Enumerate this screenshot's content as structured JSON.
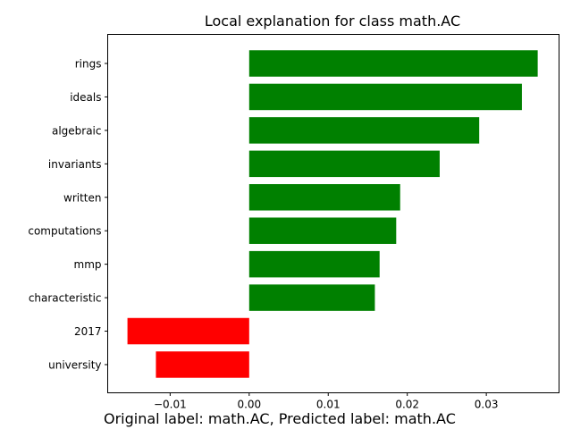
{
  "chart_data": {
    "type": "bar",
    "orientation": "horizontal",
    "title": "Local explanation for class math.AC",
    "categories": [
      "rings",
      "ideals",
      "algebraic",
      "invariants",
      "written",
      "computations",
      "mmp",
      "characteristic",
      "2017",
      "university"
    ],
    "values": [
      0.0365,
      0.0345,
      0.0291,
      0.0241,
      0.0191,
      0.0186,
      0.0165,
      0.0159,
      -0.0154,
      -0.0118
    ],
    "xlim": [
      -0.0179,
      0.0392
    ],
    "xticks": [
      -0.01,
      0.0,
      0.01,
      0.02,
      0.03
    ],
    "xtick_labels": [
      "−0.01",
      "0.00",
      "0.01",
      "0.02",
      "0.03"
    ],
    "xlabel": "",
    "ylabel": "",
    "grid": false,
    "positive_color": "#008000",
    "negative_color": "#ff0000"
  },
  "caption": "Original label: math.AC, Predicted label: math.AC"
}
